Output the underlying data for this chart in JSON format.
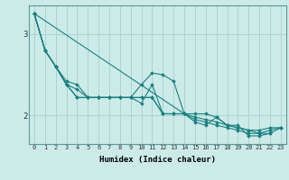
{
  "xlabel": "Humidex (Indice chaleur)",
  "background_color": "#cceae8",
  "grid_color": "#aad4d2",
  "line_color": "#1a8080",
  "xlim": [
    -0.5,
    23.5
  ],
  "ylim": [
    1.65,
    3.35
  ],
  "yticks": [
    2,
    3
  ],
  "xticks": [
    0,
    1,
    2,
    3,
    4,
    5,
    6,
    7,
    8,
    9,
    10,
    11,
    12,
    13,
    14,
    15,
    16,
    17,
    18,
    19,
    20,
    21,
    22,
    23
  ],
  "series": [
    [
      3.25,
      2.8,
      2.6,
      2.38,
      2.22,
      2.22,
      2.22,
      2.22,
      2.22,
      2.22,
      2.22,
      2.22,
      2.02,
      2.02,
      2.02,
      1.95,
      1.92,
      1.88,
      1.85,
      1.82,
      1.78,
      1.78,
      1.82,
      1.85
    ],
    [
      3.25,
      2.8,
      2.6,
      2.38,
      2.22,
      2.22,
      2.22,
      2.22,
      2.22,
      2.22,
      2.22,
      2.22,
      2.02,
      2.02,
      2.02,
      1.98,
      1.95,
      1.92,
      1.88,
      1.85,
      1.82,
      1.78,
      1.78,
      1.85
    ],
    [
      3.25,
      2.8,
      2.6,
      2.38,
      2.32,
      2.22,
      2.22,
      2.22,
      2.22,
      2.22,
      2.15,
      2.38,
      2.02,
      2.02,
      2.02,
      2.02,
      2.02,
      1.98,
      1.88,
      1.85,
      1.82,
      1.82,
      1.85,
      1.85
    ],
    [
      3.25,
      2.8,
      2.6,
      2.42,
      2.38,
      2.22,
      2.22,
      2.22,
      2.22,
      2.22,
      2.38,
      2.52,
      2.5,
      2.42,
      2.02,
      1.92,
      1.88,
      1.98,
      1.88,
      1.88,
      1.75,
      1.75,
      1.78,
      null
    ],
    [
      3.25,
      null,
      null,
      null,
      null,
      null,
      null,
      null,
      null,
      null,
      null,
      null,
      null,
      null,
      2.02,
      null,
      null,
      null,
      null,
      null,
      null,
      null,
      null,
      null
    ]
  ]
}
